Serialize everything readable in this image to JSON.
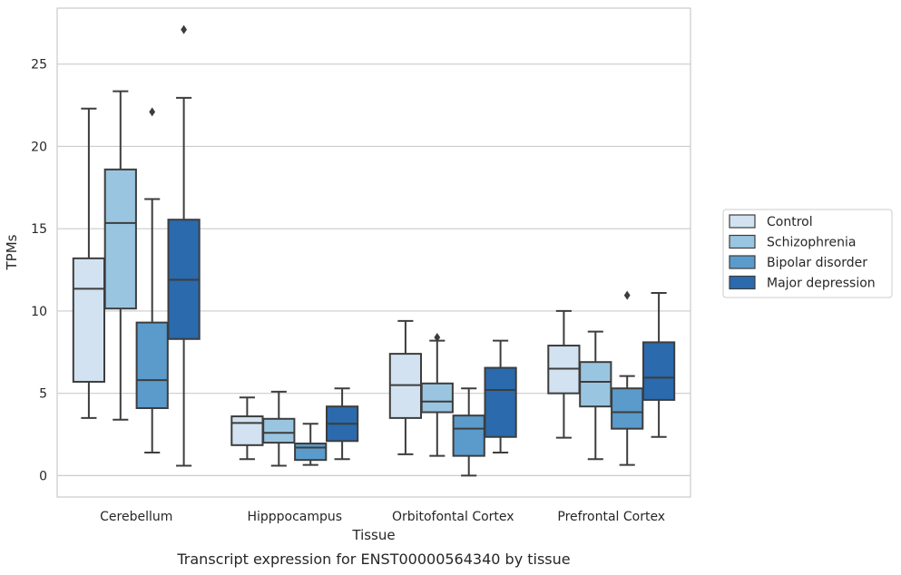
{
  "chart_data": {
    "type": "box",
    "caption": "Transcript expression for ENST00000564340 by tissue",
    "xlabel": "Tissue",
    "ylabel": "TPMs",
    "ylim": [
      -1.3,
      28.4
    ],
    "yticks": [
      0,
      5,
      10,
      15,
      20,
      25
    ],
    "grid": "horizontal",
    "legend_placement": "right",
    "categories": [
      "Cerebellum",
      "Hipppocampus",
      "Orbitofontal Cortex",
      "Prefrontal Cortex"
    ],
    "series": [
      {
        "name": "Control",
        "color": "#d2e2f1",
        "boxes": [
          {
            "min": 3.5,
            "q1": 5.7,
            "median": 11.35,
            "q3": 13.2,
            "max": 22.3,
            "outliers": []
          },
          {
            "min": 1.0,
            "q1": 1.85,
            "median": 3.2,
            "q3": 3.6,
            "max": 4.75,
            "outliers": []
          },
          {
            "min": 1.3,
            "q1": 3.5,
            "median": 5.5,
            "q3": 7.4,
            "max": 9.4,
            "outliers": []
          },
          {
            "min": 2.3,
            "q1": 5.0,
            "median": 6.5,
            "q3": 7.9,
            "max": 10.0,
            "outliers": []
          }
        ]
      },
      {
        "name": "Schizophrenia",
        "color": "#9ac5e0",
        "boxes": [
          {
            "min": 3.4,
            "q1": 10.15,
            "median": 15.35,
            "q3": 18.6,
            "max": 23.35,
            "outliers": []
          },
          {
            "min": 0.6,
            "q1": 2.0,
            "median": 2.6,
            "q3": 3.45,
            "max": 5.1,
            "outliers": []
          },
          {
            "min": 1.2,
            "q1": 3.85,
            "median": 4.5,
            "q3": 5.6,
            "max": 8.2,
            "outliers": [
              8.4
            ]
          },
          {
            "min": 1.0,
            "q1": 4.2,
            "median": 5.7,
            "q3": 6.9,
            "max": 8.75,
            "outliers": []
          }
        ]
      },
      {
        "name": "Bipolar disorder",
        "color": "#5a9bcb",
        "boxes": [
          {
            "min": 1.4,
            "q1": 4.1,
            "median": 5.8,
            "q3": 9.3,
            "max": 16.8,
            "outliers": [
              22.1
            ]
          },
          {
            "min": 0.65,
            "q1": 0.95,
            "median": 1.7,
            "q3": 1.95,
            "max": 3.15,
            "outliers": []
          },
          {
            "min": 0.0,
            "q1": 1.2,
            "median": 2.85,
            "q3": 3.65,
            "max": 5.3,
            "outliers": []
          },
          {
            "min": 0.65,
            "q1": 2.85,
            "median": 3.85,
            "q3": 5.3,
            "max": 6.05,
            "outliers": [
              10.95
            ]
          }
        ]
      },
      {
        "name": "Major depression",
        "color": "#2a6aad",
        "boxes": [
          {
            "min": 0.6,
            "q1": 8.3,
            "median": 11.9,
            "q3": 15.55,
            "max": 22.95,
            "outliers": [
              27.1
            ]
          },
          {
            "min": 1.0,
            "q1": 2.1,
            "median": 3.15,
            "q3": 4.2,
            "max": 5.3,
            "outliers": []
          },
          {
            "min": 1.4,
            "q1": 2.35,
            "median": 5.2,
            "q3": 6.55,
            "max": 8.2,
            "outliers": []
          },
          {
            "min": 2.35,
            "q1": 4.6,
            "median": 5.95,
            "q3": 8.1,
            "max": 11.1,
            "outliers": []
          }
        ]
      }
    ]
  }
}
